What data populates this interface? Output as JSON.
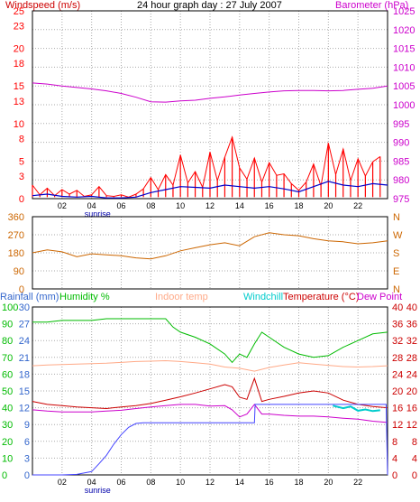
{
  "title": "24 hour graph day : 27 July 2007",
  "colors": {
    "frame": "#000000",
    "grid": "#aaaaaa",
    "wind_speed": "#ff0000",
    "wind_avg": "#0000cc",
    "barometer": "#cc00cc",
    "direction": "#cc6600",
    "rainfall": "#4444ff",
    "humidity": "#00bb00",
    "indoor_temp": "#ffaa88",
    "windchill": "#00cccc",
    "temperature": "#cc0000",
    "dew_point": "#cc00cc",
    "compass_text": "#cc6600",
    "right_axis_text": "#cc0000",
    "left_axis_text": "#3366cc"
  },
  "chart_data": [
    {
      "type": "line",
      "panel": "wind_barometer",
      "title": "24 hour graph day : 27 July 2007",
      "left_axis_label": "Windspeed (m/s)",
      "right_axis_label": "Barometer (hPa)",
      "left_ylim": [
        0,
        25
      ],
      "left_ticks": [
        0,
        3,
        5,
        8,
        10,
        13,
        15,
        18,
        20,
        23,
        25
      ],
      "right_ylim": [
        975,
        1025
      ],
      "right_ticks": [
        975,
        980,
        985,
        990,
        995,
        1000,
        1005,
        1010,
        1015,
        1020,
        1025
      ],
      "xlim": [
        0,
        24
      ],
      "x_tick_labels": [
        "02",
        "04",
        "06",
        "08",
        "10",
        "12",
        "14",
        "16",
        "18",
        "20",
        "22"
      ],
      "x_ticks_at": [
        2,
        4,
        6,
        8,
        10,
        12,
        14,
        16,
        18,
        20,
        22
      ],
      "sunrise_label": "sunrise",
      "sunrise_x": 4.4,
      "grid": true,
      "series": [
        {
          "axis": "right",
          "color_key": "barometer",
          "x": [
            0,
            1,
            2,
            3,
            4,
            5,
            6,
            7,
            8,
            9,
            10,
            11,
            12,
            13,
            14,
            15,
            16,
            17,
            18,
            19,
            20,
            21,
            22,
            23,
            24
          ],
          "values": [
            1005.8,
            1005.5,
            1005,
            1004.6,
            1004.2,
            1003.7,
            1003,
            1002,
            1000.8,
            1000.7,
            1001,
            1001.2,
            1001.7,
            1002.1,
            1002.6,
            1003,
            1003.4,
            1003.7,
            1003.8,
            1003.8,
            1003.7,
            1003.8,
            1004.1,
            1004.4,
            1005
          ]
        },
        {
          "axis": "left",
          "color_key": "wind_avg",
          "x": [
            0,
            1,
            2,
            3,
            4,
            5,
            6,
            7,
            8,
            9,
            10,
            11,
            12,
            13,
            14,
            15,
            16,
            17,
            18,
            19,
            20,
            21,
            22,
            23,
            24
          ],
          "values": [
            0.4,
            0.6,
            0.3,
            0.2,
            0.3,
            0.1,
            0.1,
            0.2,
            0.8,
            1.2,
            1.6,
            1.5,
            1.4,
            1.8,
            1.6,
            1.4,
            1.6,
            1.3,
            0.9,
            1.6,
            2.3,
            1.8,
            1.6,
            2,
            1.8
          ]
        },
        {
          "axis": "left",
          "color_key": "wind_speed",
          "x": [
            0,
            0.5,
            1,
            1.5,
            2,
            2.5,
            3,
            3.5,
            4,
            4.5,
            5,
            5.5,
            6,
            6.5,
            7,
            7.5,
            8,
            8.5,
            9,
            9.5,
            10,
            10.5,
            11,
            11.5,
            12,
            12.5,
            13,
            13.5,
            14,
            14.5,
            15,
            15.5,
            16,
            16.5,
            17,
            17.5,
            18,
            18.5,
            19,
            19.5,
            20,
            20.5,
            21,
            21.5,
            22,
            22.5,
            23,
            23.5
          ],
          "values": [
            1.8,
            0.5,
            1.4,
            0.4,
            1.2,
            0.6,
            1.1,
            0.3,
            0.5,
            1.6,
            0.4,
            0.3,
            0.5,
            0.2,
            0.6,
            1.3,
            2.8,
            1.2,
            3.2,
            1.8,
            5.8,
            2.1,
            3.6,
            1.5,
            6.2,
            2.4,
            5.5,
            8.2,
            4.1,
            2.6,
            5.4,
            2.2,
            4.8,
            3.1,
            3.3,
            2.0,
            1.1,
            2.2,
            4.6,
            1.7,
            7.4,
            3.2,
            6.6,
            2.4,
            5.3,
            3.0,
            4.9,
            5.6
          ]
        }
      ]
    },
    {
      "type": "line",
      "panel": "wind_direction",
      "left_ylim": [
        0,
        360
      ],
      "left_ticks": [
        0,
        90,
        180,
        270,
        360
      ],
      "right_compass": [
        "N",
        "W",
        "S",
        "E",
        "N"
      ],
      "xlim": [
        0,
        24
      ],
      "grid": true,
      "series": [
        {
          "axis": "left",
          "color_key": "direction",
          "x": [
            0,
            1,
            2,
            3,
            4,
            5,
            6,
            7,
            8,
            9,
            10,
            11,
            12,
            13,
            14,
            15,
            16,
            17,
            18,
            19,
            20,
            21,
            22,
            23,
            24
          ],
          "values": [
            180,
            195,
            185,
            160,
            175,
            170,
            165,
            155,
            150,
            165,
            190,
            205,
            220,
            230,
            215,
            260,
            280,
            270,
            265,
            250,
            240,
            235,
            225,
            230,
            240
          ]
        }
      ]
    },
    {
      "type": "line",
      "panel": "temperature_humidity_rain",
      "legend": [
        "Rainfall (mm)",
        "Humidity %",
        "Indoor temp",
        "Windchill",
        "Temperature (°C)",
        "Dew Point"
      ],
      "rain_ticks": [
        0,
        3,
        6,
        9,
        12,
        15,
        18,
        21,
        24,
        27,
        30
      ],
      "humidity_ticks": [
        0,
        10,
        20,
        30,
        40,
        50,
        60,
        70,
        80,
        90,
        100
      ],
      "rain_ylim": [
        0,
        30
      ],
      "humidity_ylim": [
        0,
        100
      ],
      "temp_ticks": [
        0,
        4,
        8,
        12,
        16,
        20,
        24,
        28,
        32,
        36,
        40
      ],
      "temp_ylim": [
        0,
        40
      ],
      "xlim": [
        0,
        24
      ],
      "x_tick_labels": [
        "02",
        "04",
        "06",
        "08",
        "10",
        "12",
        "14",
        "16",
        "18",
        "20",
        "22"
      ],
      "x_ticks_at": [
        2,
        4,
        6,
        8,
        10,
        12,
        14,
        16,
        18,
        20,
        22
      ],
      "sunrise_label": "sunrise",
      "sunrise_x": 4.4,
      "grid": true,
      "series": [
        {
          "axis": "humidity",
          "color_key": "humidity",
          "x": [
            0,
            1,
            2,
            3,
            4,
            5,
            6,
            7,
            8,
            9,
            9.5,
            10,
            11,
            12,
            13,
            13.5,
            14,
            14.5,
            15,
            15.5,
            16,
            17,
            18,
            19,
            20,
            21,
            22,
            23,
            24
          ],
          "values": [
            91,
            91,
            92,
            92,
            92,
            93,
            93,
            93,
            93,
            93,
            88,
            85,
            82,
            78,
            72,
            67,
            72,
            70,
            78,
            85,
            82,
            76,
            72,
            70,
            71,
            76,
            80,
            84,
            85
          ]
        },
        {
          "axis": "temp",
          "color_key": "indoor_temp",
          "x": [
            0,
            1,
            2,
            3,
            4,
            5,
            6,
            7,
            8,
            9,
            10,
            11,
            12,
            13,
            14,
            15,
            16,
            17,
            18,
            19,
            20,
            21,
            22,
            23,
            24
          ],
          "values": [
            26,
            26.2,
            26.3,
            26.4,
            26.5,
            26.6,
            26.8,
            27,
            27.1,
            27.2,
            27,
            26.7,
            26.4,
            25.7,
            25.4,
            24.7,
            25.6,
            26.2,
            26.7,
            26.4,
            26.1,
            25.8,
            25.7,
            25.8,
            26
          ]
        },
        {
          "axis": "temp",
          "color_key": "temperature",
          "x": [
            0,
            1,
            2,
            3,
            4,
            5,
            6,
            7,
            8,
            9,
            10,
            11,
            12,
            13,
            13.5,
            14,
            14.5,
            15,
            15.5,
            16,
            17,
            18,
            19,
            20,
            21,
            22,
            23,
            24
          ],
          "values": [
            17.5,
            16.8,
            16.5,
            16.2,
            16,
            15.8,
            16.2,
            16.5,
            17,
            17.8,
            18.6,
            19.5,
            20.5,
            21.5,
            21,
            18.5,
            18,
            23,
            17.5,
            18,
            18.7,
            19.5,
            20,
            19.5,
            17.8,
            16.8,
            16.3,
            16
          ]
        },
        {
          "axis": "temp",
          "color_key": "windchill",
          "x": [
            20.3,
            21,
            21.5,
            22,
            22.5,
            23,
            23.5
          ],
          "values": [
            16.5,
            15.9,
            16.3,
            15.3,
            15.6,
            15.2,
            15.4
          ]
        },
        {
          "axis": "temp",
          "color_key": "dew_point",
          "x": [
            0,
            1,
            2,
            3,
            4,
            5,
            6,
            7,
            8,
            9,
            10,
            11,
            12,
            13,
            13.5,
            14,
            14.5,
            15,
            15.5,
            16,
            17,
            18,
            19,
            20,
            21,
            22,
            23,
            24
          ],
          "values": [
            15.5,
            15.2,
            15,
            15,
            15,
            15.2,
            15.4,
            15.8,
            16.2,
            16.5,
            16.8,
            16.8,
            16.4,
            16.5,
            15.5,
            13.8,
            14.5,
            16.8,
            14.5,
            14.5,
            14.2,
            14,
            14,
            13.8,
            13.5,
            13.3,
            12.8,
            12.5
          ]
        },
        {
          "axis": "rain",
          "color_key": "rainfall",
          "x": [
            0,
            1,
            2,
            3,
            4,
            4.5,
            5,
            5.5,
            6,
            6.5,
            7,
            7.5,
            8,
            9,
            10,
            11,
            12,
            13,
            14,
            15,
            15.05,
            16,
            17,
            18,
            19,
            20,
            21,
            22,
            23,
            23.9,
            24
          ],
          "values": [
            0,
            0,
            0,
            0.1,
            0.6,
            2,
            3.5,
            5.5,
            7.2,
            8.5,
            9.2,
            9.3,
            9.3,
            9.3,
            9.3,
            9.3,
            9.3,
            9.3,
            9.3,
            9.3,
            12.6,
            12.6,
            12.6,
            12.6,
            12.6,
            12.6,
            12.6,
            12.6,
            12.6,
            12.6,
            0
          ]
        }
      ]
    }
  ]
}
